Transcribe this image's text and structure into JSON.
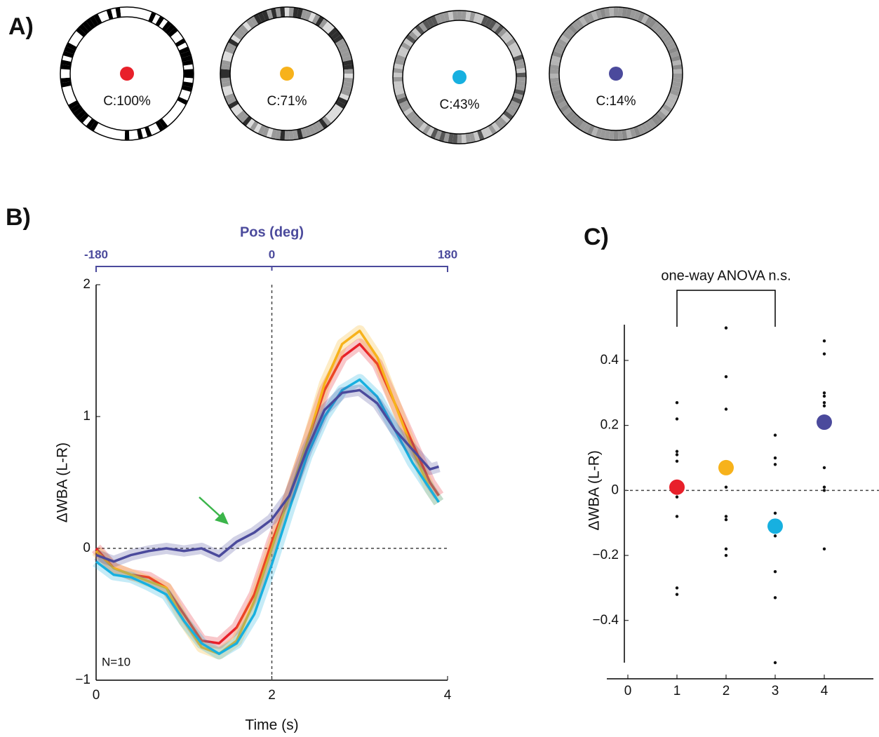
{
  "panel_labels": [
    "A)",
    "B)",
    "C)"
  ],
  "stimuli": [
    {
      "label": "C:100%",
      "color": "#e8202a"
    },
    {
      "label": "C:71%",
      "color": "#f7b21b"
    },
    {
      "label": "C:43%",
      "color": "#17b0e0"
    },
    {
      "label": "C:14%",
      "color": "#4b4a9c"
    }
  ],
  "chart_data": [
    {
      "type": "line",
      "xlabel": "Time (s)",
      "ylabel": "ΔWBA (L-R)",
      "x2label": "Pos (deg)",
      "x2lim": [
        -180,
        180
      ],
      "x2ticks": [
        -180,
        0,
        180
      ],
      "x2color": "#4b4a9c",
      "annotation": "N=10",
      "x": [
        0,
        0.2,
        0.4,
        0.6,
        0.8,
        1.0,
        1.2,
        1.4,
        1.6,
        1.8,
        2.0,
        2.2,
        2.4,
        2.6,
        2.8,
        3.0,
        3.2,
        3.4,
        3.6,
        3.8,
        3.9
      ],
      "xlim": [
        0,
        4
      ],
      "xticks": [
        0,
        2,
        4
      ],
      "ylim": [
        -1,
        2
      ],
      "yticks": [
        {
          "value": -1,
          "label": "−1"
        },
        0,
        1,
        2
      ],
      "hlines": [
        0
      ],
      "vlines": [
        2
      ],
      "series": [
        {
          "color": "#e8202a",
          "values": [
            0,
            -0.15,
            -0.2,
            -0.22,
            -0.3,
            -0.5,
            -0.7,
            -0.72,
            -0.6,
            -0.35,
            0.05,
            0.4,
            0.8,
            1.2,
            1.45,
            1.55,
            1.4,
            1.1,
            0.8,
            0.5,
            0.4
          ]
        },
        {
          "color": "#f7b21b",
          "values": [
            -0.02,
            -0.15,
            -0.2,
            -0.25,
            -0.3,
            -0.55,
            -0.75,
            -0.8,
            -0.7,
            -0.4,
            0.0,
            0.4,
            0.8,
            1.25,
            1.55,
            1.65,
            1.45,
            1.1,
            0.75,
            0.45,
            0.35
          ]
        },
        {
          "color": "#17b0e0",
          "values": [
            -0.1,
            -0.2,
            -0.22,
            -0.28,
            -0.35,
            -0.55,
            -0.72,
            -0.8,
            -0.72,
            -0.5,
            -0.12,
            0.3,
            0.7,
            1.0,
            1.2,
            1.28,
            1.15,
            0.9,
            0.65,
            0.45,
            0.35
          ]
        },
        {
          "color": "#4b4a9c",
          "values": [
            -0.05,
            -0.1,
            -0.05,
            -0.02,
            0.0,
            -0.02,
            0.0,
            -0.06,
            0.05,
            0.12,
            0.22,
            0.4,
            0.75,
            1.05,
            1.18,
            1.2,
            1.1,
            0.9,
            0.75,
            0.6,
            0.62
          ]
        }
      ]
    },
    {
      "type": "scatter",
      "ylabel": "ΔWBA (L-R)",
      "xlim": [
        0,
        5
      ],
      "xticks": [
        0,
        1,
        2,
        3,
        4
      ],
      "ylim": [
        -0.53,
        0.51
      ],
      "yticks": [
        {
          "value": -0.4,
          "label": "−0.4"
        },
        {
          "value": -0.2,
          "label": "−0.2"
        },
        0,
        0.2,
        0.4
      ],
      "hlines": [
        0
      ],
      "annotation": "one-way ANOVA n.s.",
      "bracket": [
        1,
        3
      ],
      "means": {
        "x": [
          1,
          2,
          3,
          4
        ],
        "values": [
          0.01,
          0.07,
          -0.11,
          0.21
        ],
        "colors": [
          "#e8202a",
          "#f7b21b",
          "#17b0e0",
          "#4b4a9c"
        ]
      },
      "points": [
        {
          "x": 1,
          "values": [
            0.27,
            0.22,
            0.12,
            0.11,
            0.09,
            0.0,
            -0.02,
            -0.08,
            -0.3,
            -0.32
          ]
        },
        {
          "x": 2,
          "values": [
            0.5,
            0.35,
            0.25,
            0.01,
            -0.08,
            -0.09,
            -0.18,
            -0.2
          ]
        },
        {
          "x": 3,
          "values": [
            0.17,
            0.1,
            0.08,
            -0.07,
            -0.12,
            -0.14,
            -0.25,
            -0.33,
            -0.53
          ]
        },
        {
          "x": 4,
          "values": [
            0.46,
            0.42,
            0.3,
            0.29,
            0.27,
            0.26,
            0.07,
            0.01,
            0.0,
            -0.18
          ]
        }
      ]
    }
  ]
}
